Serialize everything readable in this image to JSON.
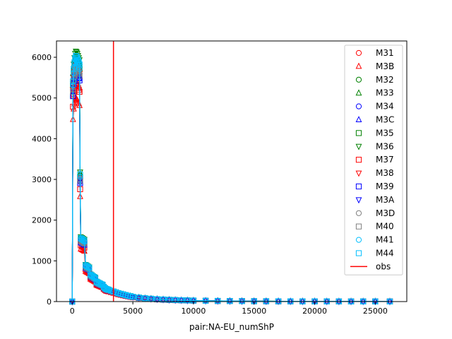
{
  "chart_data": {
    "type": "scatter",
    "title": "",
    "xlabel": "pair:NA-EU_numShP",
    "ylabel": "",
    "xlim": [
      -1300,
      27600
    ],
    "ylim": [
      0,
      6400
    ],
    "xticks": [
      0,
      5000,
      10000,
      15000,
      20000,
      25000
    ],
    "yticks": [
      0,
      1000,
      2000,
      3000,
      4000,
      5000,
      6000
    ],
    "xtick_labels": [
      "0",
      "5000",
      "10000",
      "15000",
      "20000",
      "25000"
    ],
    "ytick_labels": [
      "0",
      "1000",
      "2000",
      "3000",
      "4000",
      "5000",
      "6000"
    ],
    "grid": false,
    "legend_position": "top-right",
    "x": [
      0,
      60,
      120,
      180,
      240,
      300,
      360,
      420,
      480,
      540,
      600,
      650,
      700,
      800,
      900,
      1000,
      1100,
      1200,
      1300,
      1400,
      1500,
      1600,
      1700,
      1800,
      1900,
      2000,
      2100,
      2200,
      2300,
      2400,
      2500,
      2600,
      2700,
      2800,
      2900,
      3000,
      3200,
      3400,
      3600,
      3800,
      4000,
      4200,
      4400,
      4600,
      4800,
      5000,
      5500,
      6000,
      6500,
      7000,
      7500,
      8000,
      8500,
      9000,
      9500,
      10000,
      11000,
      12000,
      13000,
      14000,
      15000,
      16000,
      17000,
      18000,
      19000,
      20000,
      21000,
      22000,
      23000,
      24000,
      25000,
      26200
    ],
    "base_curve": [
      0,
      5200,
      5500,
      5650,
      5750,
      5800,
      5780,
      5750,
      5700,
      5650,
      5600,
      3000,
      1500,
      1480,
      1460,
      1440,
      860,
      840,
      820,
      800,
      640,
      620,
      600,
      580,
      560,
      470,
      455,
      440,
      425,
      410,
      400,
      350,
      320,
      300,
      290,
      280,
      260,
      240,
      220,
      200,
      185,
      170,
      155,
      140,
      128,
      115,
      95,
      80,
      68,
      58,
      50,
      43,
      37,
      32,
      28,
      25,
      20,
      16,
      13,
      11,
      9,
      8,
      7,
      6,
      5,
      5,
      4,
      4,
      3,
      3,
      3,
      2
    ],
    "series": [
      {
        "name": "M31",
        "marker": "circle",
        "color": "#ff0000",
        "scale": 1.01
      },
      {
        "name": "M3B",
        "marker": "triangle-up",
        "color": "#ff0000",
        "scale": 0.86
      },
      {
        "name": "M32",
        "marker": "circle",
        "color": "#008000",
        "scale": 1.03
      },
      {
        "name": "M33",
        "marker": "triangle-up",
        "color": "#008000",
        "scale": 1.05
      },
      {
        "name": "M34",
        "marker": "circle",
        "color": "#0000ff",
        "scale": 0.98
      },
      {
        "name": "M3C",
        "marker": "triangle-up",
        "color": "#0000ff",
        "scale": 0.99
      },
      {
        "name": "M35",
        "marker": "square",
        "color": "#008000",
        "scale": 1.02
      },
      {
        "name": "M36",
        "marker": "triangle-down",
        "color": "#008000",
        "scale": 1.06
      },
      {
        "name": "M37",
        "marker": "square",
        "color": "#ff0000",
        "scale": 0.92
      },
      {
        "name": "M38",
        "marker": "triangle-down",
        "color": "#ff0000",
        "scale": 1.0
      },
      {
        "name": "M39",
        "marker": "square",
        "color": "#0000ff",
        "scale": 0.97
      },
      {
        "name": "M3A",
        "marker": "triangle-down",
        "color": "#0000ff",
        "scale": 0.99
      },
      {
        "name": "M3D",
        "marker": "circle",
        "color": "#808080",
        "scale": 1.0
      },
      {
        "name": "M40",
        "marker": "square",
        "color": "#808080",
        "scale": 0.99
      },
      {
        "name": "M41",
        "marker": "circle",
        "color": "#00bfff",
        "scale": 1.02
      },
      {
        "name": "M44",
        "marker": "square",
        "color": "#00bfff",
        "scale": 1.04
      }
    ],
    "obs": {
      "name": "obs",
      "x": 3400,
      "color": "#ff0000"
    }
  }
}
